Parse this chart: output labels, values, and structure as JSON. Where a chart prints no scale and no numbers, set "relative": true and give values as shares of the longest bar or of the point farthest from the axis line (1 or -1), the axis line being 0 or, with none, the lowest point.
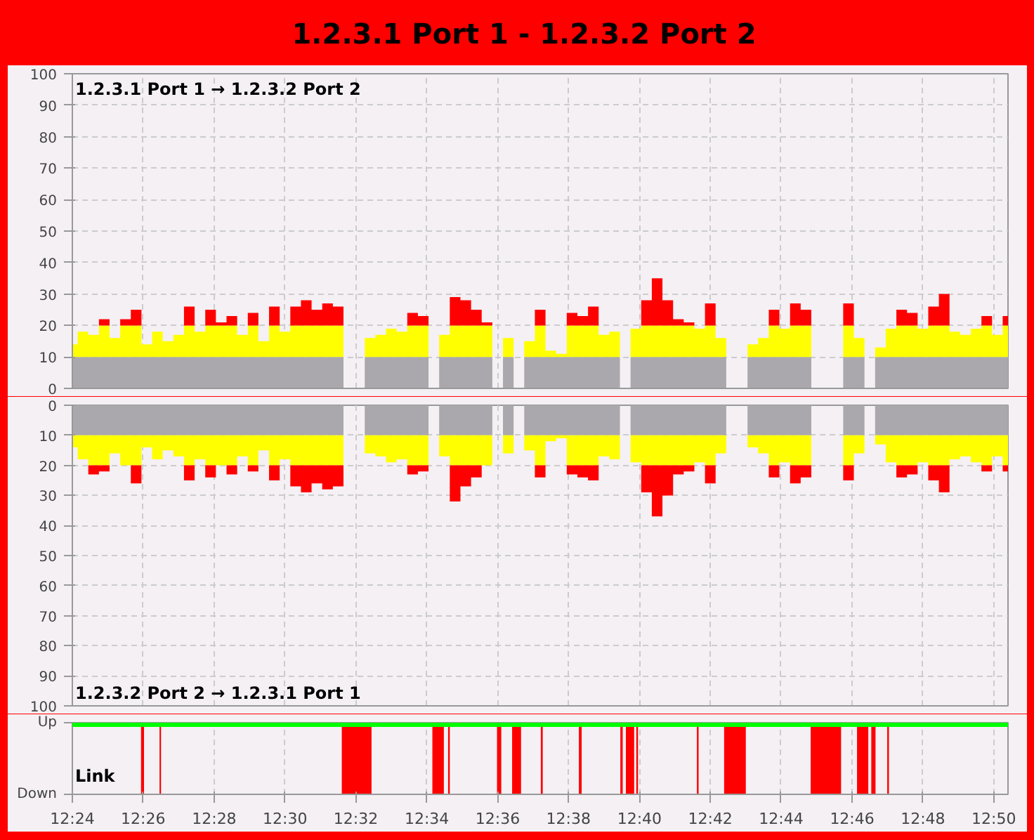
{
  "chart_data": [
    {
      "type": "area",
      "title": "1.2.3.1 Port 1 - 1.2.3.2 Port 2",
      "annotations": [
        "1.2.3.1 Port 1 → 1.2.3.2 Port 2"
      ],
      "stacked": true,
      "grid": true,
      "tick_labels": "y",
      "x": [
        12.4,
        12.405,
        12.41,
        12.415,
        12.42,
        12.425,
        12.43,
        12.435,
        12.44,
        12.445,
        12.45,
        12.455,
        12.46,
        12.465,
        12.47,
        12.475,
        12.48,
        12.485,
        12.49,
        12.495,
        12.5,
        12.505,
        12.51,
        12.515,
        12.52,
        12.525,
        12.53,
        12.535,
        12.54,
        12.545,
        12.55,
        12.555,
        12.56,
        12.565,
        12.57,
        12.575,
        12.58,
        12.585,
        12.59,
        12.595,
        12.6,
        12.605,
        12.61,
        12.615,
        12.62,
        12.625,
        12.63,
        12.635,
        12.64,
        12.645,
        12.65,
        12.655,
        12.66,
        12.665,
        12.67,
        12.675,
        12.68,
        12.685,
        12.69,
        12.695,
        12.7,
        12.705,
        12.71,
        12.715,
        12.72,
        12.725,
        12.73,
        12.735,
        12.74,
        12.745,
        12.75,
        12.755,
        12.76,
        12.765,
        12.77,
        12.775,
        12.78,
        12.785,
        12.79,
        12.795,
        12.8,
        12.805,
        12.81,
        12.815,
        12.82,
        12.825,
        12.83,
        12.835,
        12.84
      ],
      "series": [
        {
          "color": "#aaa8ac",
          "values": [
            10,
            10,
            10,
            10,
            10,
            10,
            10,
            10,
            10,
            10,
            10,
            10,
            10,
            10,
            10,
            10,
            10,
            10,
            10,
            10,
            10,
            10,
            10,
            10,
            10,
            10,
            null,
            null,
            10,
            10,
            10,
            10,
            10,
            10,
            null,
            10,
            10,
            10,
            10,
            10,
            null,
            10,
            null,
            10,
            10,
            10,
            10,
            10,
            10,
            10,
            10,
            10,
            null,
            10,
            10,
            10,
            10,
            10,
            10,
            10,
            10,
            10,
            null,
            null,
            10,
            10,
            10,
            10,
            10,
            10,
            null,
            null,
            null,
            10,
            10,
            null,
            10,
            10,
            10,
            10,
            10,
            10,
            10,
            10,
            10,
            10,
            10,
            10,
            10
          ]
        },
        {
          "color": "#ffff00",
          "values": [
            4,
            8,
            7,
            10,
            6,
            10,
            10,
            4,
            8,
            5,
            7,
            10,
            8,
            10,
            10,
            10,
            7,
            10,
            5,
            10,
            8,
            10,
            10,
            10,
            10,
            10,
            null,
            null,
            6,
            7,
            9,
            8,
            10,
            10,
            null,
            7,
            10,
            10,
            10,
            10,
            null,
            6,
            null,
            5,
            10,
            2,
            1,
            10,
            10,
            10,
            7,
            8,
            null,
            9,
            10,
            10,
            10,
            10,
            10,
            9,
            10,
            6,
            null,
            null,
            4,
            6,
            10,
            9,
            10,
            10,
            null,
            null,
            null,
            10,
            6,
            null,
            3,
            9,
            10,
            10,
            9,
            10,
            10,
            8,
            7,
            9,
            10,
            7,
            10
          ]
        },
        {
          "color": "#ff0000",
          "values": [
            0,
            0,
            0,
            2,
            0,
            2,
            5,
            0,
            0,
            0,
            0,
            6,
            0,
            5,
            1,
            3,
            0,
            4,
            0,
            6,
            0,
            6,
            8,
            5,
            7,
            6,
            null,
            null,
            0,
            0,
            0,
            0,
            4,
            3,
            null,
            0,
            9,
            8,
            5,
            1,
            null,
            null,
            null,
            0,
            5,
            0,
            0,
            4,
            3,
            6,
            0,
            0,
            null,
            0,
            8,
            15,
            8,
            2,
            1,
            0,
            7,
            0,
            null,
            null,
            0,
            0,
            5,
            0,
            7,
            5,
            null,
            null,
            null,
            7,
            0,
            null,
            0,
            0,
            5,
            4,
            0,
            6,
            10,
            0,
            0,
            0,
            3,
            0,
            3
          ]
        }
      ],
      "xlim": [
        12.4,
        12.84
      ],
      "xticks": [
        {
          "value": 12.4,
          "label": null
        },
        {
          "value": 12.4333,
          "label": null
        },
        {
          "value": 12.4667,
          "label": null
        },
        {
          "value": 12.5,
          "label": null
        },
        {
          "value": 12.5333,
          "label": null
        },
        {
          "value": 12.5667,
          "label": null
        },
        {
          "value": 12.6,
          "label": null
        },
        {
          "value": 12.6333,
          "label": null
        },
        {
          "value": 12.6667,
          "label": null
        },
        {
          "value": 12.7,
          "label": null
        },
        {
          "value": 12.7333,
          "label": null
        },
        {
          "value": 12.7667,
          "label": null
        },
        {
          "value": 12.8,
          "label": null
        },
        {
          "value": 12.8333,
          "label": null
        }
      ],
      "ylim": [
        0,
        100
      ],
      "yticks": [
        0,
        10,
        20,
        30,
        40,
        50,
        60,
        70,
        80,
        90,
        100
      ]
    },
    {
      "type": "area",
      "annotations": [
        "1.2.3.2 Port 2 → 1.2.3.1 Port 1"
      ],
      "stacked": true,
      "grid": true,
      "tick_labels": "y",
      "x": [
        12.4,
        12.405,
        12.41,
        12.415,
        12.42,
        12.425,
        12.43,
        12.435,
        12.44,
        12.445,
        12.45,
        12.455,
        12.46,
        12.465,
        12.47,
        12.475,
        12.48,
        12.485,
        12.49,
        12.495,
        12.5,
        12.505,
        12.51,
        12.515,
        12.52,
        12.525,
        12.53,
        12.535,
        12.54,
        12.545,
        12.55,
        12.555,
        12.56,
        12.565,
        12.57,
        12.575,
        12.58,
        12.585,
        12.59,
        12.595,
        12.6,
        12.605,
        12.61,
        12.615,
        12.62,
        12.625,
        12.63,
        12.635,
        12.64,
        12.645,
        12.65,
        12.655,
        12.66,
        12.665,
        12.67,
        12.675,
        12.68,
        12.685,
        12.69,
        12.695,
        12.7,
        12.705,
        12.71,
        12.715,
        12.72,
        12.725,
        12.73,
        12.735,
        12.74,
        12.745,
        12.75,
        12.755,
        12.76,
        12.765,
        12.77,
        12.775,
        12.78,
        12.785,
        12.79,
        12.795,
        12.8,
        12.805,
        12.81,
        12.815,
        12.82,
        12.825,
        12.83,
        12.835,
        12.84
      ],
      "series": [
        {
          "color": "#aaa8ac",
          "values": [
            10,
            10,
            10,
            10,
            10,
            10,
            10,
            10,
            10,
            10,
            10,
            10,
            10,
            10,
            10,
            10,
            10,
            10,
            10,
            10,
            10,
            10,
            10,
            10,
            10,
            10,
            null,
            null,
            10,
            10,
            10,
            10,
            10,
            10,
            null,
            10,
            10,
            10,
            10,
            10,
            null,
            10,
            null,
            10,
            10,
            10,
            10,
            10,
            10,
            10,
            10,
            10,
            null,
            10,
            10,
            10,
            10,
            10,
            10,
            10,
            10,
            10,
            null,
            null,
            10,
            10,
            10,
            10,
            10,
            10,
            null,
            null,
            null,
            10,
            10,
            null,
            10,
            10,
            10,
            10,
            10,
            10,
            10,
            10,
            10,
            10,
            10,
            10,
            10
          ]
        },
        {
          "color": "#ffff00",
          "values": [
            4,
            8,
            10,
            10,
            6,
            10,
            10,
            4,
            8,
            5,
            7,
            10,
            8,
            10,
            10,
            10,
            7,
            10,
            5,
            10,
            8,
            10,
            10,
            10,
            10,
            10,
            null,
            null,
            6,
            7,
            9,
            8,
            10,
            10,
            null,
            7,
            10,
            10,
            10,
            10,
            null,
            6,
            null,
            5,
            10,
            2,
            1,
            10,
            10,
            10,
            7,
            8,
            null,
            9,
            10,
            10,
            10,
            10,
            10,
            9,
            10,
            6,
            null,
            null,
            4,
            6,
            10,
            9,
            10,
            10,
            null,
            null,
            null,
            10,
            6,
            null,
            3,
            9,
            10,
            10,
            9,
            10,
            10,
            8,
            7,
            9,
            10,
            7,
            10
          ]
        },
        {
          "color": "#ff0000",
          "values": [
            0,
            0,
            3,
            2,
            0,
            0,
            6,
            0,
            0,
            0,
            0,
            5,
            0,
            4,
            0,
            3,
            0,
            2,
            0,
            5,
            0,
            7,
            9,
            6,
            8,
            7,
            null,
            null,
            0,
            0,
            0,
            0,
            3,
            2,
            null,
            0,
            12,
            7,
            4,
            0,
            null,
            null,
            null,
            0,
            4,
            0,
            0,
            3,
            4,
            5,
            0,
            0,
            null,
            0,
            9,
            17,
            10,
            3,
            2,
            0,
            6,
            0,
            null,
            null,
            0,
            0,
            4,
            0,
            6,
            4,
            null,
            null,
            null,
            5,
            0,
            null,
            0,
            0,
            4,
            3,
            0,
            5,
            9,
            0,
            0,
            0,
            2,
            0,
            2
          ]
        }
      ],
      "xlim": [
        12.4,
        12.84
      ],
      "xticks": [
        {
          "value": 12.4,
          "label": null
        },
        {
          "value": 12.4333,
          "label": null
        },
        {
          "value": 12.4667,
          "label": null
        },
        {
          "value": 12.5,
          "label": null
        },
        {
          "value": 12.5333,
          "label": null
        },
        {
          "value": 12.5667,
          "label": null
        },
        {
          "value": 12.6,
          "label": null
        },
        {
          "value": 12.6333,
          "label": null
        },
        {
          "value": 12.6667,
          "label": null
        },
        {
          "value": 12.7,
          "label": null
        },
        {
          "value": 12.7333,
          "label": null
        },
        {
          "value": 12.7667,
          "label": null
        },
        {
          "value": 12.8,
          "label": null
        },
        {
          "value": 12.8333,
          "label": null
        }
      ],
      "ylim": [
        100,
        0
      ],
      "yticks": [
        0,
        10,
        20,
        30,
        40,
        50,
        60,
        70,
        80,
        90,
        100
      ]
    },
    {
      "type": "area",
      "annotations": [
        "Up",
        "Down",
        "Link"
      ],
      "grid": "x",
      "relative": true,
      "x": [
        12.4,
        12.4323,
        12.4323,
        12.4337,
        12.4337,
        12.441,
        12.441,
        12.4417,
        12.4417,
        12.5267,
        12.5267,
        12.5407,
        12.5407,
        12.5693,
        12.5693,
        12.5747,
        12.5747,
        12.5767,
        12.5767,
        12.5775,
        12.5775,
        12.5997,
        12.5997,
        12.6017,
        12.6017,
        12.6068,
        12.6068,
        12.611,
        12.611,
        12.6203,
        12.6203,
        12.6212,
        12.6212,
        12.6382,
        12.6382,
        12.6395,
        12.6395,
        12.6577,
        12.6577,
        12.6588,
        12.6588,
        12.6603,
        12.6603,
        12.6642,
        12.6642,
        12.6652,
        12.6652,
        12.666,
        12.666,
        12.6937,
        12.6937,
        12.6945,
        12.6945,
        12.7065,
        12.7065,
        12.7167,
        12.7167,
        12.7472,
        12.7472,
        12.7615,
        12.7615,
        12.769,
        12.769,
        12.7743,
        12.7743,
        12.7757,
        12.7757,
        12.7777,
        12.7777,
        12.7832,
        12.7832,
        12.784,
        12.784,
        12.84
      ],
      "series": [
        {
          "color": "#ff0000",
          "values": [
            0,
            0,
            1,
            1,
            0,
            0,
            1,
            1,
            0,
            0,
            1,
            1,
            0,
            0,
            1,
            1,
            0,
            0,
            1,
            1,
            0,
            0,
            1,
            1,
            0,
            0,
            1,
            1,
            0,
            0,
            1,
            1,
            0,
            0,
            1,
            1,
            0,
            0,
            1,
            1,
            0,
            0,
            1,
            1,
            0,
            0,
            1,
            1,
            0,
            0,
            1,
            1,
            0,
            0,
            1,
            1,
            0,
            0,
            1,
            1,
            0,
            0,
            1,
            1,
            0,
            0,
            1,
            1,
            0,
            0,
            1,
            1,
            0,
            0
          ]
        }
      ],
      "ref_lines": [
        {
          "axis": "y",
          "value": 1,
          "color": "#00ff00"
        }
      ],
      "xlim": [
        12.4,
        12.84
      ],
      "xticks": [
        {
          "value": 12.4,
          "label": "12:24"
        },
        {
          "value": 12.4333,
          "label": "12:26"
        },
        {
          "value": 12.4667,
          "label": "12:28"
        },
        {
          "value": 12.5,
          "label": "12:30"
        },
        {
          "value": 12.5333,
          "label": "12:32"
        },
        {
          "value": 12.5667,
          "label": "12:34"
        },
        {
          "value": 12.6,
          "label": "12:36"
        },
        {
          "value": 12.6333,
          "label": "12:38"
        },
        {
          "value": 12.6667,
          "label": "12:40"
        },
        {
          "value": 12.7,
          "label": "12:42"
        },
        {
          "value": 12.7333,
          "label": "12:44"
        },
        {
          "value": 12.7667,
          "label": "12:46"
        },
        {
          "value": 12.8,
          "label": "12:48"
        },
        {
          "value": 12.8333,
          "label": "12:50"
        }
      ],
      "tick_labels": "x"
    }
  ]
}
